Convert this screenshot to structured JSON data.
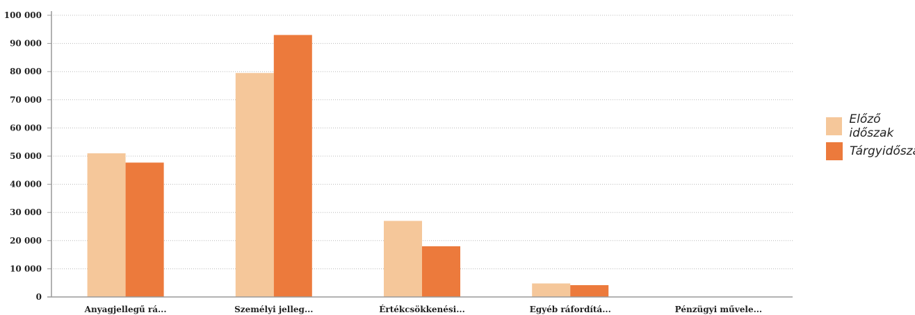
{
  "chart_data": {
    "type": "bar",
    "categories": [
      "Anyagjellegű rá...",
      "Személyi jelleg...",
      "Értékcsökkenési...",
      "Egyéb ráfordítá...",
      "Pénzügyi művele..."
    ],
    "series": [
      {
        "name": "Előző időszak",
        "color": "#f5c79a",
        "values": [
          51000,
          79500,
          27000,
          4800,
          0
        ]
      },
      {
        "name": "Tárgyidőszak",
        "color": "#ec7a3c",
        "values": [
          47700,
          93000,
          18000,
          4200,
          0
        ]
      }
    ],
    "y_ticks": [
      "100 000",
      "90 000",
      "80 000",
      "70 000",
      "60 000",
      "50 000",
      "40 000",
      "30 000",
      "20 000",
      "10 000",
      "0"
    ],
    "ylim": [
      0,
      100000
    ],
    "grid": true,
    "legend_position": "right"
  }
}
